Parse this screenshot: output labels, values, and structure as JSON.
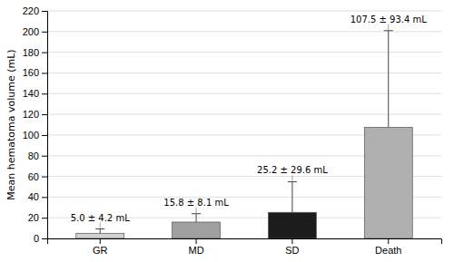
{
  "chart_data": {
    "type": "bar",
    "categories": [
      "GR",
      "MD",
      "SD",
      "Death"
    ],
    "values": [
      5.0,
      15.8,
      25.2,
      107.5
    ],
    "errors": [
      4.2,
      8.1,
      29.6,
      93.4
    ],
    "colors": [
      "#d0d0d0",
      "#a0a0a0",
      "#1c1c1c",
      "#b0b0b0"
    ],
    "annotations": [
      "5.0 ± 4.2 mL",
      "15.8 ± 8.1 mL",
      "25.2 ± 29.6 mL",
      "107.5 ± 93.4 mL"
    ],
    "ylabel": "Mean hematoma volume (mL)",
    "ylim": [
      0,
      220
    ],
    "yticks": [
      0,
      20,
      40,
      60,
      80,
      100,
      120,
      140,
      160,
      180,
      200,
      220
    ],
    "grid": true
  }
}
